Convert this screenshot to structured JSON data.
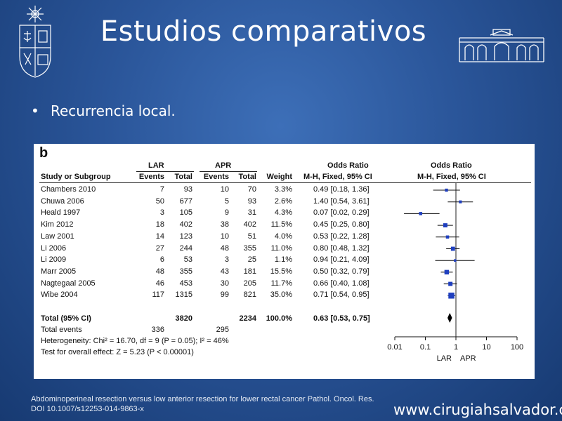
{
  "slide": {
    "title": "Estudios comparativos",
    "bullet": "Recurrencia local.",
    "citation_line1": "Abdominoperineal resection versus low anterior resection for lower rectal cancer Pathol. Oncol. Res.",
    "citation_line2": "DOI 10.1007/s12253-014-9863-x",
    "website": "www.cirugiahsalvador.cl"
  },
  "figure": {
    "panel_letter": "b",
    "group1": "LAR",
    "group2": "APR",
    "or_header": "Odds Ratio",
    "or_subheader": "M-H, Fixed, 95% CI",
    "columns": [
      "Study or Subgroup",
      "Events",
      "Total",
      "Events",
      "Total",
      "Weight",
      "M-H, Fixed, 95% CI"
    ],
    "studies": [
      {
        "name": "Chambers 2010",
        "e1": "7",
        "t1": "93",
        "e2": "10",
        "t2": "70",
        "weight": "3.3%",
        "ci": "0.49 [0.18, 1.36]"
      },
      {
        "name": "Chuwa 2006",
        "e1": "50",
        "t1": "677",
        "e2": "5",
        "t2": "93",
        "weight": "2.6%",
        "ci": "1.40 [0.54, 3.61]"
      },
      {
        "name": "Heald 1997",
        "e1": "3",
        "t1": "105",
        "e2": "9",
        "t2": "31",
        "weight": "4.3%",
        "ci": "0.07 [0.02, 0.29]"
      },
      {
        "name": "Kim 2012",
        "e1": "18",
        "t1": "402",
        "e2": "38",
        "t2": "402",
        "weight": "11.5%",
        "ci": "0.45 [0.25, 0.80]"
      },
      {
        "name": "Law 2001",
        "e1": "14",
        "t1": "123",
        "e2": "10",
        "t2": "51",
        "weight": "4.0%",
        "ci": "0.53 [0.22, 1.28]"
      },
      {
        "name": "Li 2006",
        "e1": "27",
        "t1": "244",
        "e2": "48",
        "t2": "355",
        "weight": "11.0%",
        "ci": "0.80 [0.48, 1.32]"
      },
      {
        "name": "Li 2009",
        "e1": "6",
        "t1": "53",
        "e2": "3",
        "t2": "25",
        "weight": "1.1%",
        "ci": "0.94 [0.21, 4.09]"
      },
      {
        "name": "Marr 2005",
        "e1": "48",
        "t1": "355",
        "e2": "43",
        "t2": "181",
        "weight": "15.5%",
        "ci": "0.50 [0.32, 0.79]"
      },
      {
        "name": "Nagtegaal 2005",
        "e1": "46",
        "t1": "453",
        "e2": "30",
        "t2": "205",
        "weight": "11.7%",
        "ci": "0.66 [0.40, 1.08]"
      },
      {
        "name": "Wibe 2004",
        "e1": "117",
        "t1": "1315",
        "e2": "99",
        "t2": "821",
        "weight": "35.0%",
        "ci": "0.71 [0.54, 0.95]"
      }
    ],
    "total": {
      "name": "Total (95% CI)",
      "t1": "3820",
      "t2": "2234",
      "weight": "100.0%",
      "ci": "0.63 [0.53, 0.75]"
    },
    "total_events": {
      "name": "Total events",
      "e1": "336",
      "e2": "295"
    },
    "heterogeneity": "Heterogeneity: Chi² = 16.70, df = 9 (P = 0.05); I² = 46%",
    "overall_effect": "Test for overall effect: Z = 5.23 (P < 0.00001)",
    "axis_label_left": "LAR",
    "axis_label_right": "APR"
  },
  "chart_data": {
    "type": "scatter",
    "title": "Odds Ratio",
    "subtitle": "M-H, Fixed, 95% CI",
    "xscale": "log",
    "xlim": [
      0.01,
      100
    ],
    "xticks": [
      "0.01",
      "0.1",
      "1",
      "10",
      "100"
    ],
    "xtick_values": [
      0.01,
      0.1,
      1,
      10,
      100
    ],
    "xlabel_left": "LAR",
    "xlabel_right": "APR",
    "points": [
      {
        "or": 0.49,
        "lo": 0.18,
        "hi": 1.36,
        "weight": 3.3
      },
      {
        "or": 1.4,
        "lo": 0.54,
        "hi": 3.61,
        "weight": 2.6
      },
      {
        "or": 0.07,
        "lo": 0.02,
        "hi": 0.29,
        "weight": 4.3
      },
      {
        "or": 0.45,
        "lo": 0.25,
        "hi": 0.8,
        "weight": 11.5
      },
      {
        "or": 0.53,
        "lo": 0.22,
        "hi": 1.28,
        "weight": 4.0
      },
      {
        "or": 0.8,
        "lo": 0.48,
        "hi": 1.32,
        "weight": 11.0
      },
      {
        "or": 0.94,
        "lo": 0.21,
        "hi": 4.09,
        "weight": 1.1
      },
      {
        "or": 0.5,
        "lo": 0.32,
        "hi": 0.79,
        "weight": 15.5
      },
      {
        "or": 0.66,
        "lo": 0.4,
        "hi": 1.08,
        "weight": 11.7
      },
      {
        "or": 0.71,
        "lo": 0.54,
        "hi": 0.95,
        "weight": 35.0
      }
    ],
    "summary": {
      "or": 0.63,
      "lo": 0.53,
      "hi": 0.75
    }
  }
}
